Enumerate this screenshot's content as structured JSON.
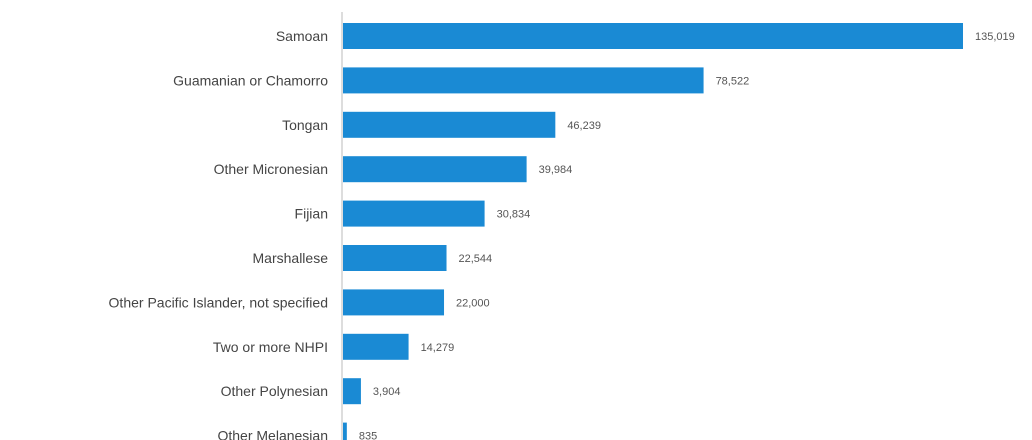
{
  "chart_data": {
    "type": "bar",
    "orientation": "horizontal",
    "title": "",
    "xlabel": "",
    "ylabel": "",
    "categories": [
      "Samoan",
      "Guamanian or Chamorro",
      "Tongan",
      "Other Micronesian",
      "Fijian",
      "Marshallese",
      "Other Pacific Islander, not specified",
      "Two or more NHPI",
      "Other Polynesian",
      "Other Melanesian"
    ],
    "values": [
      135019,
      78522,
      46239,
      39984,
      30834,
      22544,
      22000,
      14279,
      3904,
      835
    ],
    "value_labels": [
      "135,019",
      "78,522",
      "46,239",
      "39,984",
      "30,834",
      "22,544",
      "22,000",
      "14,279",
      "3,904",
      "835"
    ],
    "xlim": [
      0,
      135019
    ],
    "bar_color": "#1a8ad4",
    "grid": false,
    "legend": "none"
  }
}
